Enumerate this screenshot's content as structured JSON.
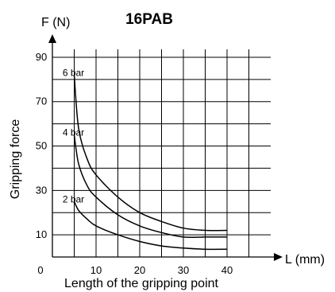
{
  "chart_data": {
    "type": "line",
    "title": "16PAB",
    "y_axis_title": "F (N)",
    "x_axis_title": "L (mm)",
    "xlabel": "Length of the gripping point",
    "ylabel": "Gripping force",
    "origin_label": "0",
    "xlim": [
      0,
      50
    ],
    "ylim": [
      0,
      95
    ],
    "x_ticks": [
      10,
      20,
      30,
      40
    ],
    "y_ticks": [
      10,
      30,
      50,
      70,
      90
    ],
    "grid": true,
    "series": [
      {
        "name": "6 bar",
        "x": [
          5,
          6,
          8,
          10,
          15,
          20,
          25,
          30,
          35,
          40
        ],
        "y": [
          82,
          58,
          44,
          37,
          27,
          20,
          16,
          13,
          12,
          12
        ]
      },
      {
        "name": "4 bar",
        "x": [
          5,
          6,
          8,
          10,
          15,
          20,
          25,
          30,
          35,
          40
        ],
        "y": [
          55,
          42,
          32,
          27,
          19,
          14,
          11,
          9,
          9,
          9
        ]
      },
      {
        "name": "2 bar",
        "x": [
          5,
          6,
          8,
          10,
          15,
          20,
          25,
          30,
          35,
          40
        ],
        "y": [
          25,
          21,
          17,
          14,
          10,
          7,
          5,
          4,
          3.5,
          3.5
        ]
      }
    ]
  }
}
